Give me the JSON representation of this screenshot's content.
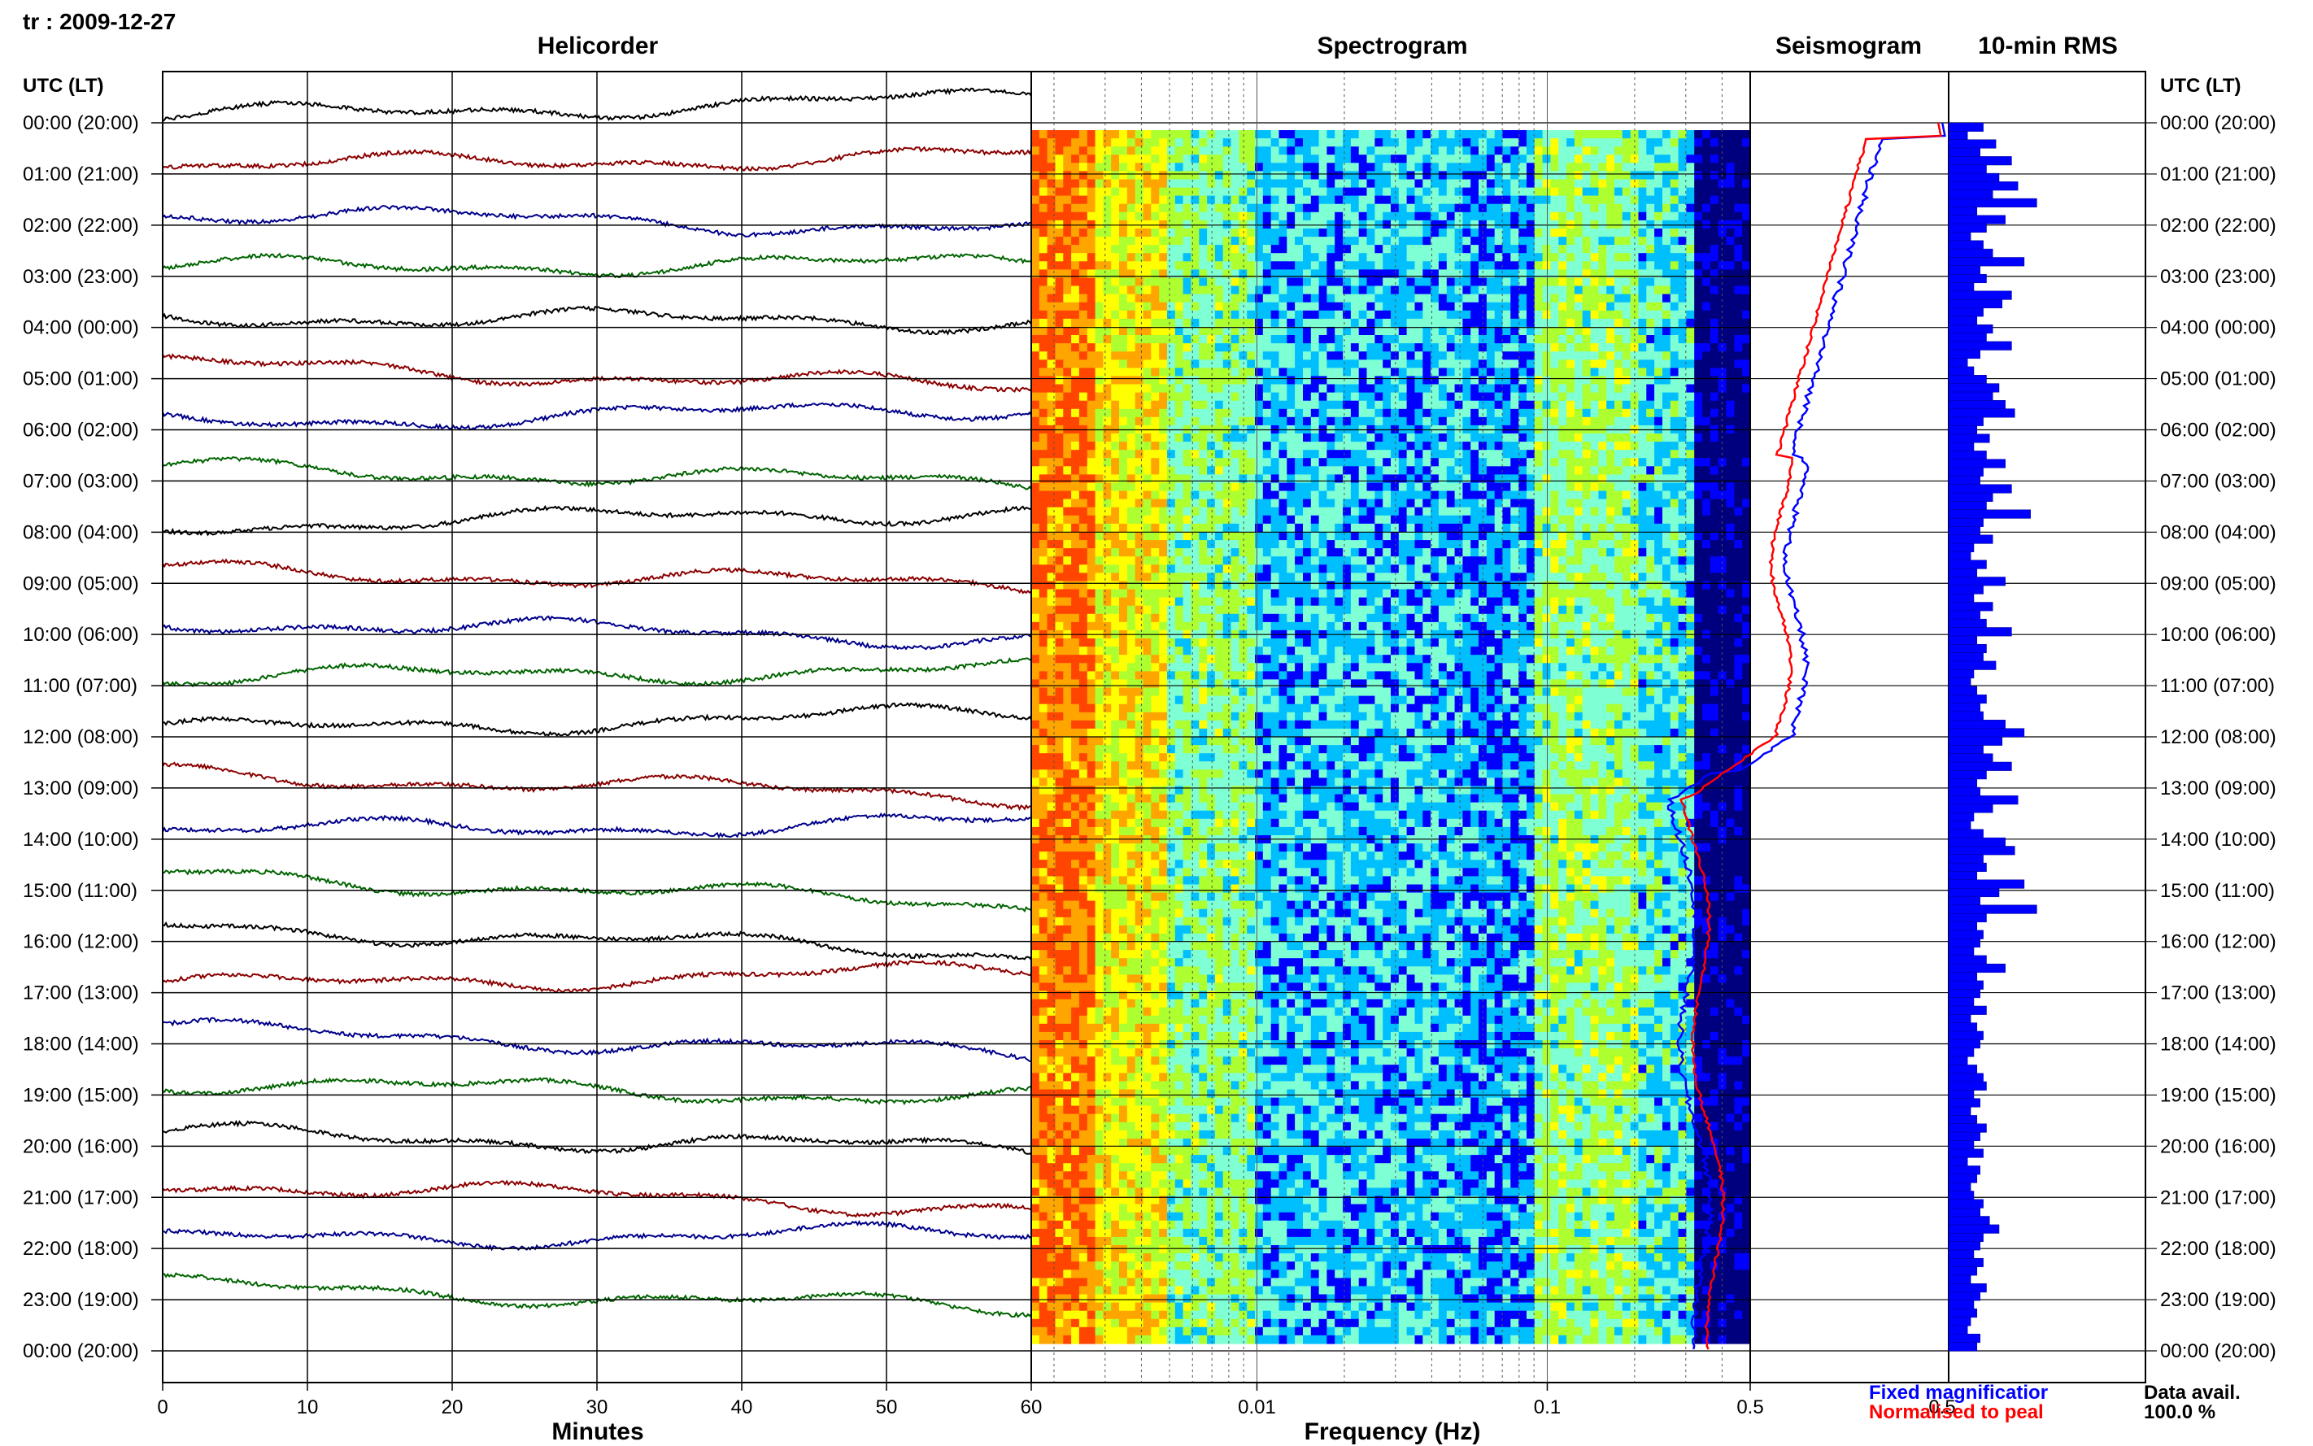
{
  "header": {
    "station_date": "tr : 2009-12-27"
  },
  "chart_data": [
    {
      "type": "line",
      "title": "Helicorder",
      "xlabel": "Minutes",
      "ylabel": "UTC (LT)",
      "xlim": [
        0,
        60
      ],
      "x_ticks": [
        0,
        10,
        20,
        30,
        40,
        50,
        60
      ],
      "row_labels": [
        "00:00 (20:00)",
        "01:00 (21:00)",
        "02:00 (22:00)",
        "03:00 (23:00)",
        "04:00 (00:00)",
        "05:00 (01:00)",
        "06:00 (02:00)",
        "07:00 (03:00)",
        "08:00 (04:00)",
        "09:00 (05:00)",
        "10:00 (06:00)",
        "11:00 (07:00)",
        "12:00 (08:00)",
        "13:00 (09:00)",
        "14:00 (10:00)",
        "15:00 (11:00)",
        "16:00 (12:00)",
        "17:00 (13:00)",
        "18:00 (14:00)",
        "19:00 (15:00)",
        "20:00 (16:00)",
        "21:00 (17:00)",
        "22:00 (18:00)",
        "23:00 (19:00)",
        "00:00 (20:00)"
      ],
      "trace_colors": [
        "#000000",
        "#8b0000",
        "#00008b",
        "#006400"
      ],
      "grid": true
    },
    {
      "type": "heatmap",
      "title": "Spectrogram",
      "xlabel": "Frequency (Hz)",
      "x_scale": "log",
      "xlim": [
        0.00167,
        0.5
      ],
      "x_tick_labels": [
        "60",
        "0.01",
        "0.1",
        "0.5"
      ],
      "colormap": [
        "#00007f",
        "#0000ff",
        "#00bfff",
        "#7fffd4",
        "#adff2f",
        "#ffff00",
        "#ffa500",
        "#ff4500"
      ]
    },
    {
      "type": "line",
      "title": "Seismogram",
      "x_tick_labels": [
        "0.5"
      ],
      "series": [
        {
          "name": "Fixed magnification",
          "color": "#0000ff"
        },
        {
          "name": "Normalised to peak",
          "color": "#ff0000"
        }
      ]
    },
    {
      "type": "bar",
      "title": "10-min RMS",
      "orientation": "horizontal",
      "color": "#0000ff",
      "values": [
        0.55,
        0.3,
        0.75,
        0.5,
        1.0,
        0.6,
        0.8,
        1.1,
        0.7,
        1.4,
        0.45,
        0.9,
        0.6,
        0.35,
        0.55,
        0.7,
        1.2,
        0.5,
        0.6,
        0.4,
        1.0,
        0.85,
        0.55,
        0.45,
        0.7,
        0.6,
        1.0,
        0.5,
        0.3,
        0.4,
        0.6,
        0.8,
        0.7,
        0.9,
        1.05,
        0.55,
        0.45,
        0.65,
        0.4,
        0.6,
        0.9,
        0.55,
        0.5,
        1.0,
        0.7,
        0.6,
        1.3,
        0.55,
        0.5,
        0.7,
        0.4,
        0.35,
        0.6,
        0.45,
        0.9,
        0.55,
        0.4,
        0.7,
        0.5,
        0.6,
        1.0,
        0.45,
        0.6,
        0.55,
        0.75,
        0.4,
        0.35,
        0.45,
        0.6,
        0.5,
        0.55,
        0.9,
        1.2,
        0.85,
        0.55,
        0.7,
        1.0,
        0.6,
        0.45,
        0.5,
        1.1,
        0.7,
        0.4,
        0.35,
        0.55,
        0.9,
        1.05,
        0.55,
        0.6,
        0.45,
        1.2,
        0.8,
        0.5,
        1.4,
        0.6,
        0.45,
        0.55,
        0.5,
        0.4,
        0.6,
        0.9,
        0.45,
        0.55,
        0.5,
        0.4,
        0.6,
        0.35,
        0.45,
        0.55,
        0.5,
        0.4,
        0.3,
        0.45,
        0.55,
        0.6,
        0.4,
        0.5,
        0.35,
        0.45,
        0.6,
        0.5,
        0.4,
        0.55,
        0.3,
        0.5,
        0.45,
        0.35,
        0.4,
        0.55,
        0.5,
        0.65,
        0.8,
        0.55,
        0.5,
        0.4,
        0.55,
        0.45,
        0.35,
        0.6,
        0.5,
        0.4,
        0.45,
        0.35,
        0.3,
        0.5,
        0.45
      ]
    }
  ],
  "right_axis": {
    "label": "UTC (LT)"
  },
  "footer": {
    "fixed_label": "Fixed magnificatior",
    "normalised_label": "Normalised to peal",
    "data_avail_label": "Data avail.",
    "data_avail_value": "100.0 %"
  }
}
